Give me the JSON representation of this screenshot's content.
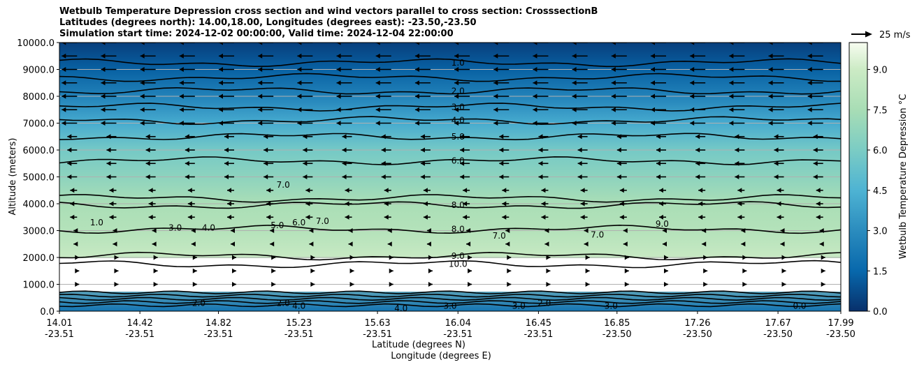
{
  "chart_data": {
    "type": "heatmap",
    "title_lines": [
      "Wetbulb Temperature Depression cross section and wind vectors parallel to cross section: CrosssectionB",
      "Latitudes (degrees north): 14.00,18.00, Longitudes (degrees east): -23.50,-23.50",
      "Simulation start time: 2024-12-02 00:00:00, Valid time: 2024-12-04 22:00:00"
    ],
    "xlabel_lines": [
      "Latitude (degrees N)",
      "Longitude (degrees E)"
    ],
    "ylabel": "Altitude (meters)",
    "colorbar_label": "Wetbulb Temperature Depression °C",
    "quiver_key": "25 m/s",
    "ylim": [
      0,
      10000
    ],
    "y_ticks": [
      "0.0",
      "1000.0",
      "2000.0",
      "3000.0",
      "4000.0",
      "5000.0",
      "6000.0",
      "7000.0",
      "8000.0",
      "9000.0",
      "10000.0"
    ],
    "x_ticks": [
      {
        "lat": "14.01",
        "lon": "-23.51"
      },
      {
        "lat": "14.42",
        "lon": "-23.51"
      },
      {
        "lat": "14.82",
        "lon": "-23.51"
      },
      {
        "lat": "15.23",
        "lon": "-23.51"
      },
      {
        "lat": "15.63",
        "lon": "-23.51"
      },
      {
        "lat": "16.04",
        "lon": "-23.51"
      },
      {
        "lat": "16.45",
        "lon": "-23.51"
      },
      {
        "lat": "16.85",
        "lon": "-23.50"
      },
      {
        "lat": "17.26",
        "lon": "-23.50"
      },
      {
        "lat": "17.67",
        "lon": "-23.50"
      },
      {
        "lat": "17.99",
        "lon": "-23.50"
      }
    ],
    "colorbar_ticks": [
      "0.0",
      "1.5",
      "3.0",
      "4.5",
      "6.0",
      "7.5",
      "9.0"
    ],
    "colorbar_range": [
      0,
      10
    ],
    "grid": "horizontal",
    "profile": [
      {
        "alt": 0,
        "value": 2.0
      },
      {
        "alt": 1000,
        "value": null
      },
      {
        "alt": 2000,
        "value": 8.8
      },
      {
        "alt": 3000,
        "value": 8.0
      },
      {
        "alt": 4000,
        "value": 7.6
      },
      {
        "alt": 5000,
        "value": 6.6
      },
      {
        "alt": 6000,
        "value": 5.8
      },
      {
        "alt": 7000,
        "value": 4.2
      },
      {
        "alt": 8000,
        "value": 2.6
      },
      {
        "alt": 9000,
        "value": 1.3
      },
      {
        "alt": 10000,
        "value": 0.4
      }
    ],
    "contour_labels": [
      {
        "text": "1.0",
        "lat": 16.04,
        "alt": 9250
      },
      {
        "text": "2.0",
        "lat": 16.04,
        "alt": 8200
      },
      {
        "text": "3.0",
        "lat": 16.04,
        "alt": 7600
      },
      {
        "text": "4.0",
        "lat": 16.04,
        "alt": 7100
      },
      {
        "text": "5.0",
        "lat": 16.04,
        "alt": 6500
      },
      {
        "text": "6.0",
        "lat": 16.04,
        "alt": 5600
      },
      {
        "text": "8.0",
        "lat": 16.04,
        "alt": 3950
      },
      {
        "text": "8.0",
        "lat": 16.04,
        "alt": 3050
      },
      {
        "text": "9.0",
        "lat": 16.04,
        "alt": 2050
      },
      {
        "text": "10.0",
        "lat": 16.04,
        "alt": 1750
      },
      {
        "text": "7.0",
        "lat": 15.15,
        "alt": 4700
      },
      {
        "text": "7.0",
        "lat": 16.25,
        "alt": 2800
      },
      {
        "text": "7.0",
        "lat": 16.75,
        "alt": 2850
      },
      {
        "text": "9.0",
        "lat": 17.08,
        "alt": 3250
      },
      {
        "text": "1.0",
        "lat": 14.2,
        "alt": 3300
      },
      {
        "text": "3.0",
        "lat": 14.6,
        "alt": 3100
      },
      {
        "text": "4.0",
        "lat": 14.77,
        "alt": 3100
      },
      {
        "text": "5.0",
        "lat": 15.12,
        "alt": 3200
      },
      {
        "text": "6.0",
        "lat": 15.23,
        "alt": 3300
      },
      {
        "text": "7.0",
        "lat": 15.35,
        "alt": 3350
      },
      {
        "text": "4.0",
        "lat": 15.23,
        "alt": 200
      },
      {
        "text": "4.0",
        "lat": 15.75,
        "alt": 100
      },
      {
        "text": "3.0",
        "lat": 16.0,
        "alt": 200
      },
      {
        "text": "3.0",
        "lat": 16.35,
        "alt": 200
      },
      {
        "text": "3.0",
        "lat": 16.82,
        "alt": 200
      },
      {
        "text": "2.0",
        "lat": 16.48,
        "alt": 300
      },
      {
        "text": "2.0",
        "lat": 15.15,
        "alt": 300
      },
      {
        "text": "2.0",
        "lat": 14.72,
        "alt": 300
      },
      {
        "text": "0.0",
        "lat": 17.78,
        "alt": 200
      }
    ]
  }
}
